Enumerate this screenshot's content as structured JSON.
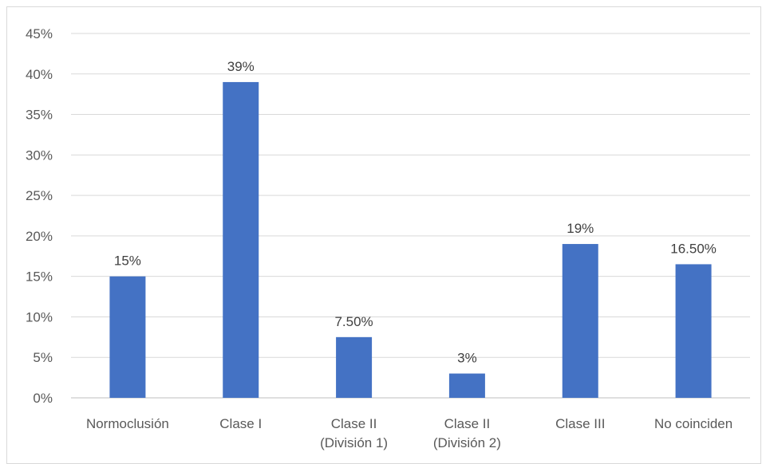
{
  "chart_data": {
    "type": "bar",
    "categories": [
      [
        "Normoclusión"
      ],
      [
        "Clase I"
      ],
      [
        "Clase II",
        "(División 1)"
      ],
      [
        "Clase II",
        "(División 2)"
      ],
      [
        "Clase III"
      ],
      [
        "No coinciden"
      ]
    ],
    "values": [
      15,
      39,
      7.5,
      3,
      19,
      16.5
    ],
    "data_labels": [
      "15%",
      "39%",
      "7.50%",
      "3%",
      "19%",
      "16.50%"
    ],
    "y_ticks": [
      "0%",
      "5%",
      "10%",
      "15%",
      "20%",
      "25%",
      "30%",
      "35%",
      "40%",
      "45%"
    ],
    "ylim": [
      0,
      45
    ],
    "y_step": 5,
    "grid": true,
    "legend": "none",
    "bar_color": "#4472c4",
    "title": "",
    "xlabel": "",
    "ylabel": ""
  }
}
